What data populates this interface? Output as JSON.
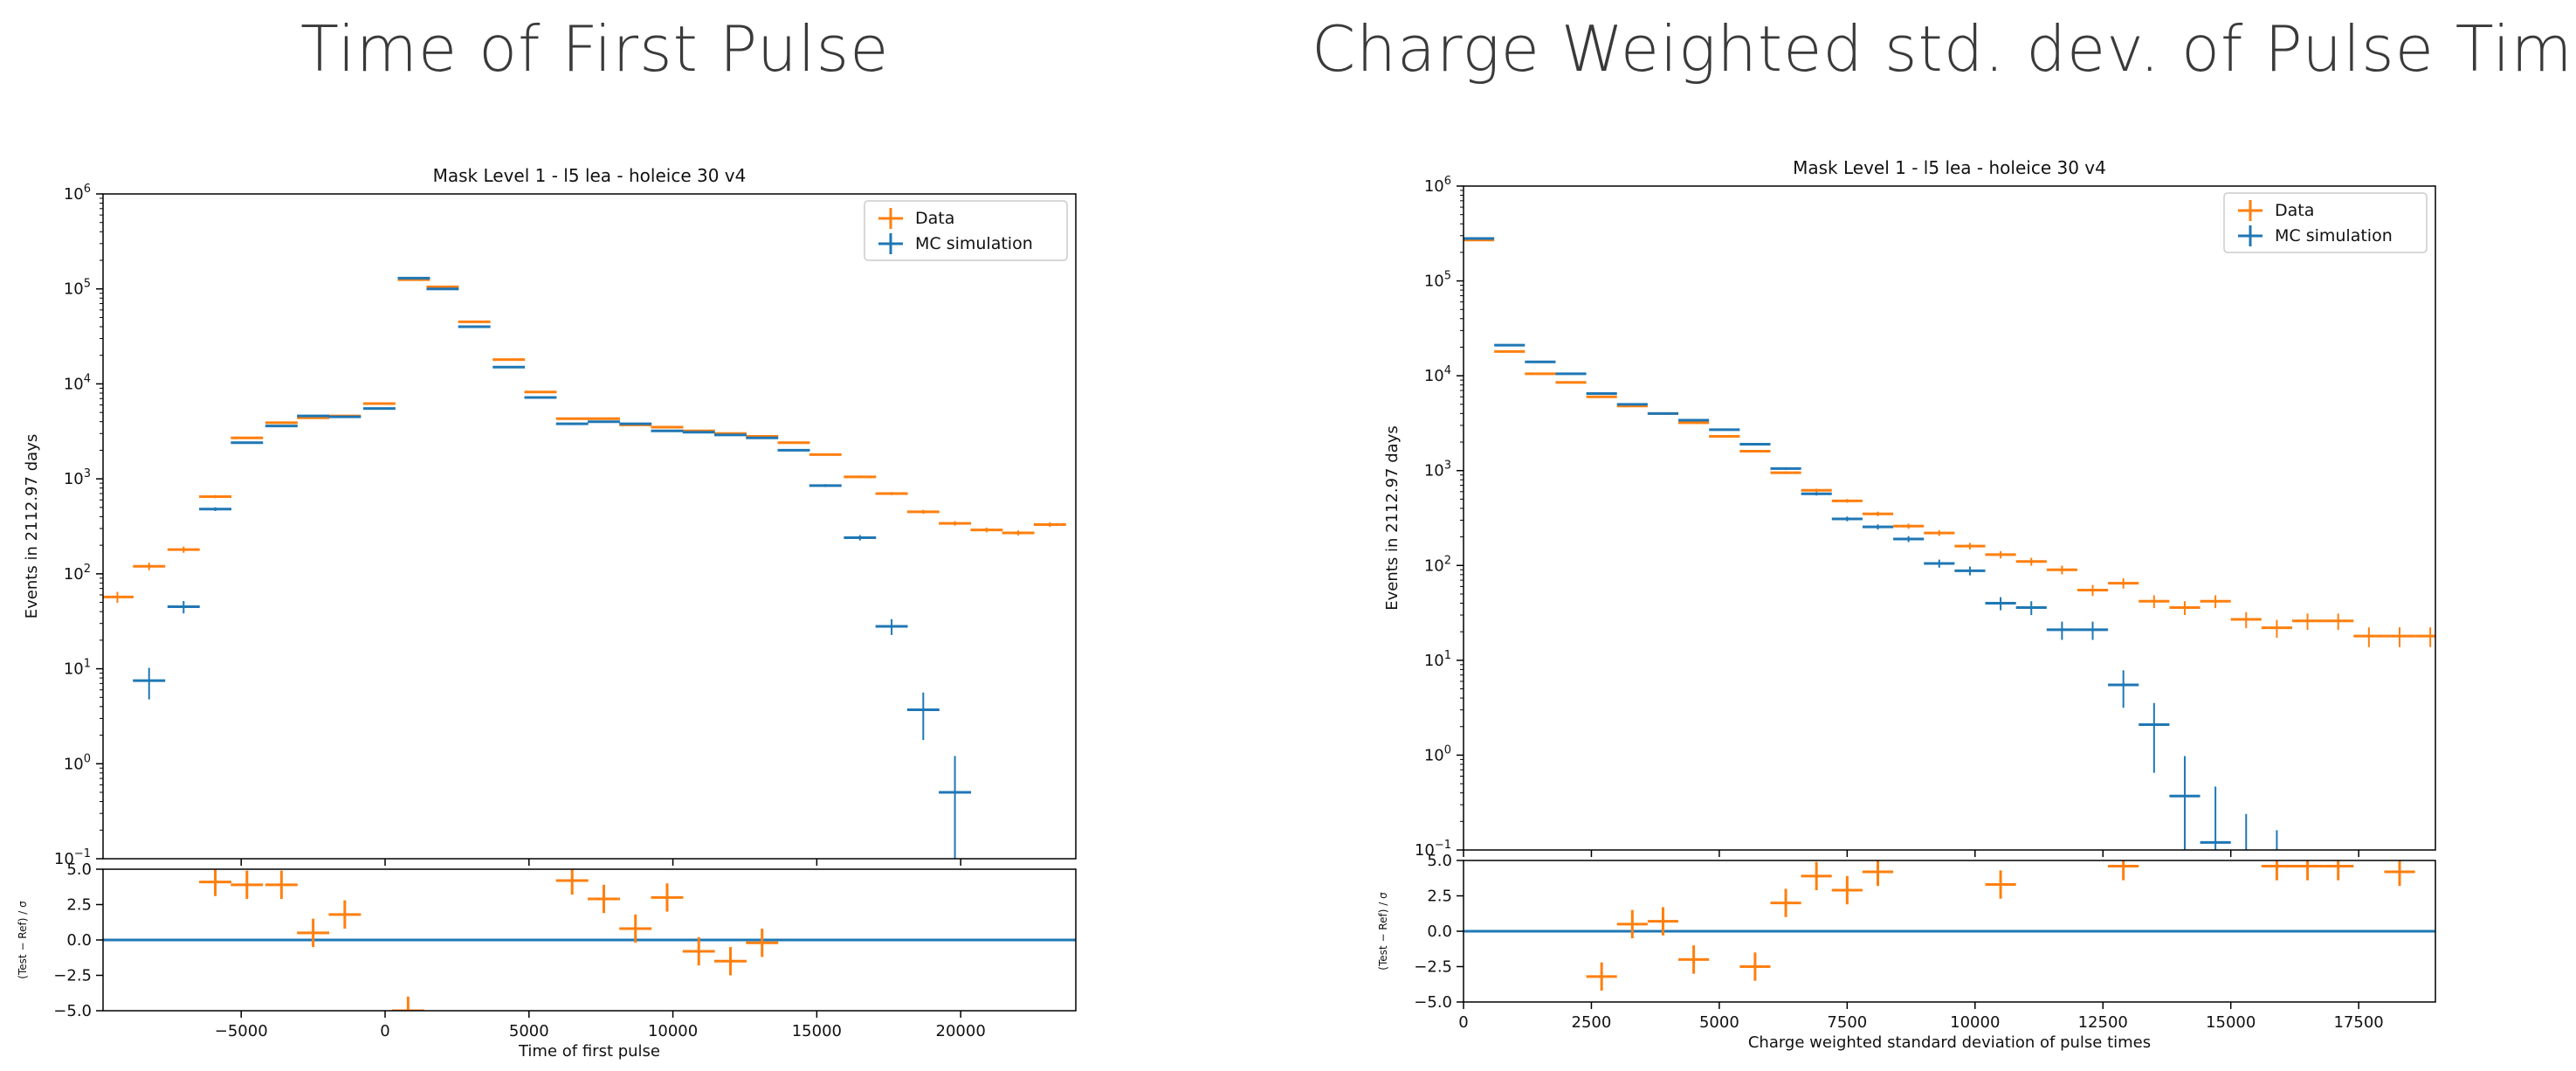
{
  "slide": {
    "left_heading": "Time of First Pulse",
    "right_heading": "Charge Weighted std. dev. of Pulse Times"
  },
  "colors": {
    "data": "#ff7f0e",
    "mc": "#1f77b4",
    "axis": "#000000",
    "zero_line": "#1f77b4"
  },
  "chart_data": [
    {
      "type": "line",
      "title": "Mask Level 1 - l5 lea - holeice 30 v4",
      "xlabel": "Time of first pulse",
      "ylabel": "Events in 2112.97 days",
      "ratio_ylabel": "(Test − Ref) / σ",
      "yscale": "log",
      "xlim": [
        -9800,
        24000
      ],
      "ylim_exp": [
        -1,
        6
      ],
      "ratio_ylim": [
        -5,
        5
      ],
      "xticks": [
        -5000,
        0,
        5000,
        10000,
        15000,
        20000
      ],
      "xtick_labels": [
        "−5000",
        "0",
        "5000",
        "10000",
        "15000",
        "20000"
      ],
      "ratio_yticks": [
        5.0,
        2.5,
        0.0,
        -2.5,
        -5.0
      ],
      "ratio_ytick_labels": [
        "5.0",
        "2.5",
        "0.0",
        "−2.5",
        "−5.0"
      ],
      "legend": {
        "position": "top-right",
        "entries": [
          "Data",
          "MC simulation"
        ]
      },
      "bin_half_width": 560,
      "series": [
        {
          "name": "Data",
          "x": [
            -9300,
            -8200,
            -7000,
            -5900,
            -4800,
            -3600,
            -2500,
            -1400,
            -200,
            1000,
            2000,
            3100,
            4300,
            5400,
            6500,
            7600,
            8700,
            9800,
            10900,
            12000,
            13100,
            14200,
            15300,
            16500,
            17600,
            18700,
            19800,
            20900,
            22000,
            23100
          ],
          "y": [
            57,
            120,
            180,
            650,
            2700,
            3900,
            4400,
            4600,
            6200,
            125000,
            105000,
            45000,
            18000,
            8200,
            4300,
            4300,
            3700,
            3500,
            3200,
            3000,
            2800,
            2400,
            1800,
            1050,
            700,
            450,
            340,
            290,
            270,
            330
          ]
        },
        {
          "name": "MC simulation",
          "x": [
            -8200,
            -7000,
            -5900,
            -4800,
            -3600,
            -2500,
            -1400,
            -200,
            1000,
            2000,
            3100,
            4300,
            5400,
            6500,
            7600,
            8700,
            9800,
            10900,
            12000,
            13100,
            14200,
            15300,
            16500,
            17600,
            18700,
            19800
          ],
          "y": [
            7.5,
            45,
            480,
            2400,
            3600,
            4600,
            4500,
            5500,
            130000,
            100000,
            40000,
            15000,
            7200,
            3800,
            4000,
            3800,
            3200,
            3100,
            2900,
            2700,
            2000,
            850,
            240,
            28,
            3.7,
            0.5
          ]
        }
      ],
      "ratio": {
        "x": [
          -5900,
          -4800,
          -3600,
          -2500,
          -1400,
          800,
          6500,
          7600,
          8700,
          9800,
          10900,
          12000,
          13100
        ],
        "y": [
          4.1,
          3.9,
          3.9,
          0.5,
          1.8,
          -5.0,
          4.2,
          2.9,
          0.8,
          3.0,
          -0.8,
          -1.5,
          -0.2
        ]
      }
    },
    {
      "type": "line",
      "title": "Mask Level 1 - l5 lea - holeice 30 v4",
      "xlabel": "Charge weighted standard deviation of pulse times",
      "ylabel": "Events in 2112.97 days",
      "ratio_ylabel": "(Test − Ref) / σ",
      "yscale": "log",
      "xlim": [
        0,
        19000
      ],
      "ylim_exp": [
        -1,
        6
      ],
      "ratio_ylim": [
        -5,
        5
      ],
      "xticks": [
        0,
        2500,
        5000,
        7500,
        10000,
        12500,
        15000,
        17500
      ],
      "xtick_labels": [
        "0",
        "2500",
        "5000",
        "7500",
        "10000",
        "12500",
        "15000",
        "17500"
      ],
      "ratio_yticks": [
        5.0,
        2.5,
        0.0,
        -2.5,
        -5.0
      ],
      "ratio_ytick_labels": [
        "5.0",
        "2.5",
        "0.0",
        "−2.5",
        "−5.0"
      ],
      "legend": {
        "position": "top-right",
        "entries": [
          "Data",
          "MC simulation"
        ]
      },
      "bin_half_width": 300,
      "series": [
        {
          "name": "Data",
          "x": [
            300,
            900,
            1500,
            2100,
            2700,
            3300,
            3900,
            4500,
            5100,
            5700,
            6300,
            6900,
            7500,
            8100,
            8700,
            9300,
            9900,
            10500,
            11100,
            11700,
            12300,
            12900,
            13500,
            14100,
            14700,
            15300,
            15900,
            16500,
            17100,
            17700,
            18300,
            18900
          ],
          "y": [
            270000,
            18000,
            10500,
            8500,
            6000,
            4800,
            4000,
            3200,
            2300,
            1600,
            950,
            620,
            480,
            350,
            260,
            220,
            160,
            130,
            110,
            90,
            55,
            65,
            42,
            36,
            42,
            27,
            22,
            26,
            26,
            18,
            18,
            18
          ]
        },
        {
          "name": "MC simulation",
          "x": [
            300,
            900,
            1500,
            2100,
            2700,
            3300,
            3900,
            4500,
            5100,
            5700,
            6300,
            6900,
            7500,
            8100,
            8700,
            9300,
            9900,
            10500,
            11100,
            11700,
            12300,
            12900,
            13500,
            14100,
            14700,
            15300,
            15900
          ],
          "y": [
            280000,
            21000,
            14000,
            10500,
            6500,
            5000,
            4000,
            3400,
            2700,
            1900,
            1050,
            570,
            310,
            255,
            190,
            105,
            88,
            40,
            36,
            21,
            21,
            5.5,
            2.1,
            0.37,
            0.12,
            0.04,
            0.02
          ]
        }
      ],
      "ratio": {
        "x": [
          2700,
          3300,
          3900,
          4500,
          5700,
          6300,
          6900,
          7500,
          8100,
          10500,
          12900,
          15900,
          16500,
          17100,
          18300
        ],
        "y": [
          -3.2,
          0.5,
          0.7,
          -2.0,
          -2.5,
          2.0,
          3.9,
          2.9,
          4.2,
          3.3,
          4.6,
          4.6,
          4.6,
          4.6,
          4.2
        ]
      }
    }
  ]
}
